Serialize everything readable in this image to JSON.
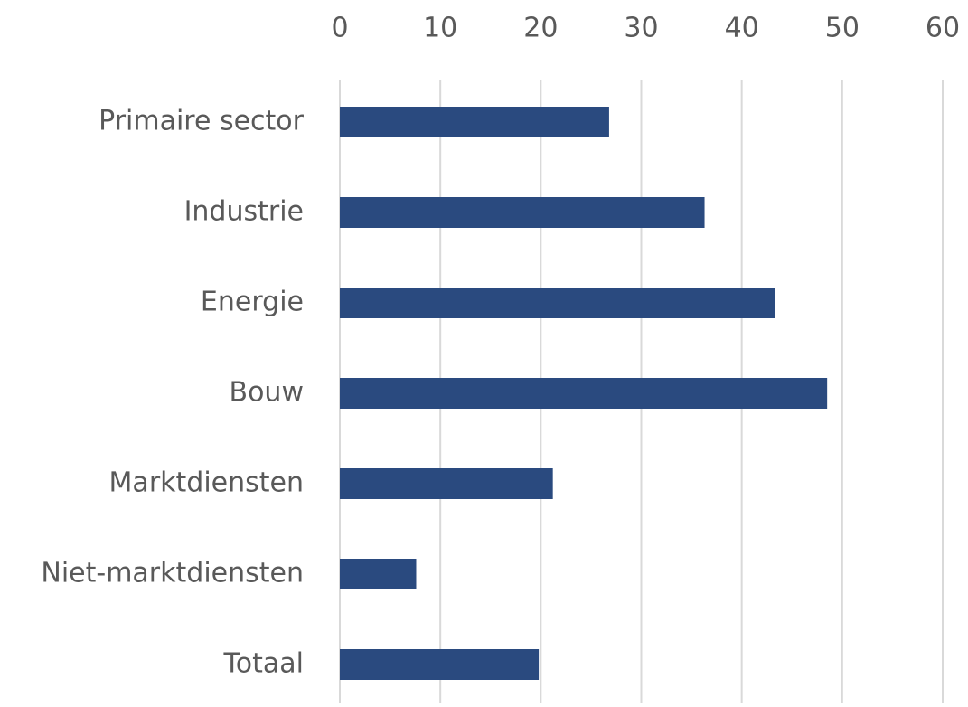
{
  "chart_data": {
    "type": "bar",
    "categories": [
      "Primaire sector",
      "Industrie",
      "Energie",
      "Bouw",
      "Marktdiensten",
      "Niet-marktdiensten",
      "Totaal"
    ],
    "values": [
      26.8,
      36.3,
      43.3,
      48.5,
      21.2,
      7.6,
      19.8
    ],
    "color": "#2a4a7f",
    "xlim": [
      0,
      60
    ],
    "xticks": [
      0,
      10,
      20,
      30,
      40,
      50,
      60
    ],
    "grid": true
  }
}
